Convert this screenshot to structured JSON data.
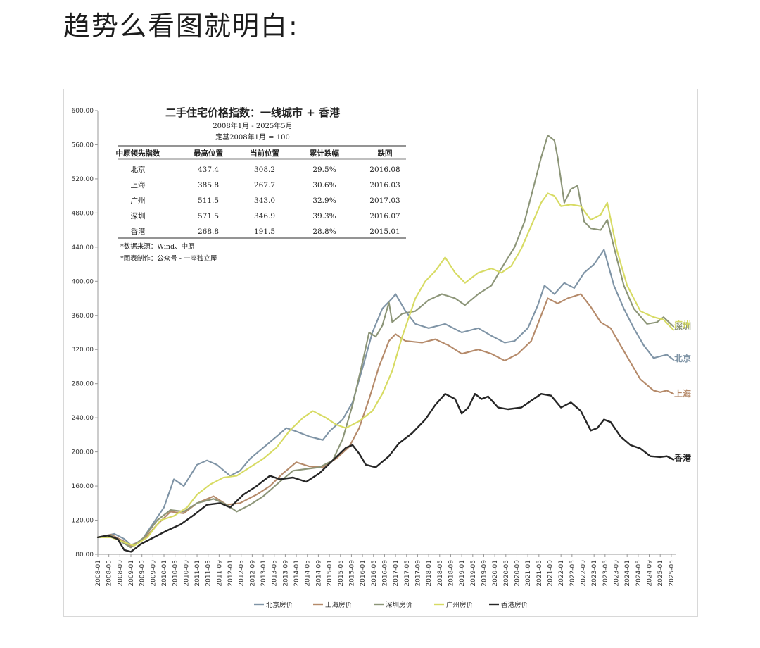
{
  "headline": "趋势么看图就明白:",
  "chart_data": {
    "type": "line",
    "title": "二手住宅价格指数：一线城市 + 香港",
    "subtitle": "2008年1月 - 2025年5月",
    "base_note": "定基2008年1月 = 100",
    "ylim": [
      80,
      600
    ],
    "yticks": [
      "80.00",
      "120.00",
      "160.00",
      "200.00",
      "240.00",
      "280.00",
      "320.00",
      "360.00",
      "400.00",
      "440.00",
      "480.00",
      "520.00",
      "560.00",
      "600.00"
    ],
    "xticks": [
      "2008-01",
      "2008-05",
      "2008-09",
      "2009-01",
      "2009-05",
      "2009-09",
      "2010-01",
      "2010-05",
      "2010-09",
      "2011-01",
      "2011-05",
      "2011-09",
      "2012-01",
      "2012-05",
      "2012-09",
      "2013-01",
      "2013-05",
      "2013-09",
      "2014-01",
      "2014-05",
      "2014-09",
      "2015-01",
      "2015-05",
      "2015-09",
      "2016-01",
      "2016-05",
      "2016-09",
      "2017-01",
      "2017-05",
      "2017-09",
      "2018-01",
      "2018-05",
      "2018-09",
      "2019-01",
      "2019-05",
      "2019-09",
      "2020-01",
      "2020-05",
      "2020-09",
      "2021-01",
      "2021-05",
      "2021-09",
      "2022-01",
      "2022-05",
      "2022-09",
      "2023-01",
      "2023-05",
      "2023-09",
      "2024-01",
      "2024-05",
      "2024-09",
      "2025-01",
      "2025-05"
    ],
    "table": {
      "headers": [
        "中原领先指数",
        "最高位置",
        "当前位置",
        "累计跌幅",
        "跌回"
      ],
      "rows": [
        [
          "北京",
          "437.4",
          "308.2",
          "29.5%",
          "2016.08"
        ],
        [
          "上海",
          "385.8",
          "267.7",
          "30.6%",
          "2016.03"
        ],
        [
          "广州",
          "511.5",
          "343.0",
          "32.9%",
          "2017.03"
        ],
        [
          "深圳",
          "571.5",
          "346.9",
          "39.3%",
          "2016.07"
        ],
        [
          "香港",
          "268.8",
          "191.5",
          "28.8%",
          "2015.01"
        ]
      ]
    },
    "notes": [
      "*数据来源：Wind、中原",
      "*图表制作：公众号 - 一座独立屋"
    ],
    "series": [
      {
        "name": "北京房价",
        "label": "北京",
        "color": "#7f94a6",
        "points": [
          [
            2008.0,
            100
          ],
          [
            2008.5,
            104
          ],
          [
            2008.8,
            98
          ],
          [
            2009.0,
            91
          ],
          [
            2009.3,
            95
          ],
          [
            2009.6,
            112
          ],
          [
            2010.0,
            135
          ],
          [
            2010.3,
            168
          ],
          [
            2010.6,
            160
          ],
          [
            2011.0,
            185
          ],
          [
            2011.3,
            190
          ],
          [
            2011.6,
            185
          ],
          [
            2012.0,
            172
          ],
          [
            2012.3,
            178
          ],
          [
            2012.6,
            192
          ],
          [
            2013.0,
            205
          ],
          [
            2013.4,
            218
          ],
          [
            2013.7,
            228
          ],
          [
            2014.0,
            224
          ],
          [
            2014.4,
            218
          ],
          [
            2014.8,
            214
          ],
          [
            2015.0,
            224
          ],
          [
            2015.4,
            238
          ],
          [
            2015.7,
            258
          ],
          [
            2016.0,
            298
          ],
          [
            2016.3,
            340
          ],
          [
            2016.6,
            368
          ],
          [
            2016.9,
            380
          ],
          [
            2017.0,
            385
          ],
          [
            2017.3,
            365
          ],
          [
            2017.6,
            350
          ],
          [
            2018.0,
            345
          ],
          [
            2018.5,
            350
          ],
          [
            2019.0,
            340
          ],
          [
            2019.5,
            345
          ],
          [
            2019.9,
            336
          ],
          [
            2020.3,
            328
          ],
          [
            2020.6,
            330
          ],
          [
            2021.0,
            345
          ],
          [
            2021.3,
            372
          ],
          [
            2021.5,
            395
          ],
          [
            2021.8,
            385
          ],
          [
            2022.1,
            398
          ],
          [
            2022.4,
            392
          ],
          [
            2022.7,
            410
          ],
          [
            2023.0,
            420
          ],
          [
            2023.3,
            437
          ],
          [
            2023.6,
            395
          ],
          [
            2023.9,
            368
          ],
          [
            2024.2,
            345
          ],
          [
            2024.5,
            325
          ],
          [
            2024.8,
            310
          ],
          [
            2025.0,
            312
          ],
          [
            2025.2,
            314
          ],
          [
            2025.4,
            308
          ]
        ]
      },
      {
        "name": "上海房价",
        "label": "上海",
        "color": "#b58a6a",
        "points": [
          [
            2008.0,
            100
          ],
          [
            2008.4,
            103
          ],
          [
            2008.8,
            95
          ],
          [
            2009.0,
            90
          ],
          [
            2009.4,
            98
          ],
          [
            2009.8,
            115
          ],
          [
            2010.2,
            130
          ],
          [
            2010.6,
            128
          ],
          [
            2011.0,
            140
          ],
          [
            2011.5,
            148
          ],
          [
            2011.9,
            138
          ],
          [
            2012.3,
            140
          ],
          [
            2012.8,
            150
          ],
          [
            2013.2,
            160
          ],
          [
            2013.6,
            175
          ],
          [
            2014.0,
            188
          ],
          [
            2014.4,
            183
          ],
          [
            2014.8,
            182
          ],
          [
            2015.2,
            192
          ],
          [
            2015.6,
            206
          ],
          [
            2015.9,
            228
          ],
          [
            2016.2,
            262
          ],
          [
            2016.5,
            300
          ],
          [
            2016.8,
            330
          ],
          [
            2017.0,
            338
          ],
          [
            2017.3,
            330
          ],
          [
            2017.8,
            328
          ],
          [
            2018.2,
            332
          ],
          [
            2018.6,
            325
          ],
          [
            2019.0,
            315
          ],
          [
            2019.5,
            320
          ],
          [
            2019.9,
            315
          ],
          [
            2020.3,
            307
          ],
          [
            2020.7,
            315
          ],
          [
            2021.1,
            330
          ],
          [
            2021.4,
            360
          ],
          [
            2021.6,
            380
          ],
          [
            2021.9,
            374
          ],
          [
            2022.2,
            380
          ],
          [
            2022.6,
            385
          ],
          [
            2022.9,
            370
          ],
          [
            2023.2,
            352
          ],
          [
            2023.5,
            345
          ],
          [
            2023.8,
            325
          ],
          [
            2024.1,
            305
          ],
          [
            2024.4,
            285
          ],
          [
            2024.8,
            272
          ],
          [
            2025.0,
            270
          ],
          [
            2025.2,
            272
          ],
          [
            2025.4,
            268
          ]
        ]
      },
      {
        "name": "深圳房价",
        "label": "深圳",
        "color": "#8c9578",
        "points": [
          [
            2008.0,
            100
          ],
          [
            2008.4,
            102
          ],
          [
            2008.7,
            95
          ],
          [
            2009.0,
            88
          ],
          [
            2009.4,
            100
          ],
          [
            2009.8,
            120
          ],
          [
            2010.2,
            132
          ],
          [
            2010.6,
            130
          ],
          [
            2011.0,
            140
          ],
          [
            2011.5,
            145
          ],
          [
            2011.9,
            138
          ],
          [
            2012.2,
            130
          ],
          [
            2012.6,
            138
          ],
          [
            2013.0,
            148
          ],
          [
            2013.5,
            165
          ],
          [
            2013.9,
            178
          ],
          [
            2014.3,
            180
          ],
          [
            2014.7,
            182
          ],
          [
            2015.1,
            190
          ],
          [
            2015.4,
            215
          ],
          [
            2015.7,
            255
          ],
          [
            2016.0,
            305
          ],
          [
            2016.2,
            340
          ],
          [
            2016.4,
            335
          ],
          [
            2016.6,
            348
          ],
          [
            2016.8,
            375
          ],
          [
            2016.9,
            352
          ],
          [
            2017.2,
            362
          ],
          [
            2017.6,
            365
          ],
          [
            2018.0,
            378
          ],
          [
            2018.4,
            385
          ],
          [
            2018.8,
            380
          ],
          [
            2019.1,
            372
          ],
          [
            2019.5,
            385
          ],
          [
            2019.9,
            395
          ],
          [
            2020.2,
            415
          ],
          [
            2020.6,
            440
          ],
          [
            2020.9,
            470
          ],
          [
            2021.2,
            515
          ],
          [
            2021.4,
            545
          ],
          [
            2021.6,
            571
          ],
          [
            2021.8,
            565
          ],
          [
            2021.9,
            545
          ],
          [
            2022.1,
            492
          ],
          [
            2022.3,
            508
          ],
          [
            2022.5,
            512
          ],
          [
            2022.7,
            470
          ],
          [
            2022.9,
            462
          ],
          [
            2023.2,
            460
          ],
          [
            2023.4,
            472
          ],
          [
            2023.6,
            440
          ],
          [
            2023.9,
            395
          ],
          [
            2024.2,
            368
          ],
          [
            2024.6,
            350
          ],
          [
            2024.9,
            352
          ],
          [
            2025.1,
            358
          ],
          [
            2025.4,
            347
          ]
        ]
      },
      {
        "name": "广州房价",
        "label": "广州",
        "color": "#d7db63",
        "points": [
          [
            2008.0,
            100
          ],
          [
            2008.4,
            100
          ],
          [
            2008.8,
            94
          ],
          [
            2009.1,
            90
          ],
          [
            2009.5,
            100
          ],
          [
            2009.9,
            120
          ],
          [
            2010.3,
            125
          ],
          [
            2010.7,
            135
          ],
          [
            2011.0,
            150
          ],
          [
            2011.4,
            162
          ],
          [
            2011.8,
            170
          ],
          [
            2012.2,
            172
          ],
          [
            2012.6,
            182
          ],
          [
            2013.0,
            192
          ],
          [
            2013.4,
            205
          ],
          [
            2013.8,
            225
          ],
          [
            2014.2,
            240
          ],
          [
            2014.5,
            248
          ],
          [
            2014.9,
            240
          ],
          [
            2015.2,
            232
          ],
          [
            2015.5,
            228
          ],
          [
            2015.9,
            236
          ],
          [
            2016.3,
            248
          ],
          [
            2016.6,
            268
          ],
          [
            2016.9,
            295
          ],
          [
            2017.2,
            335
          ],
          [
            2017.6,
            380
          ],
          [
            2017.9,
            400
          ],
          [
            2018.2,
            412
          ],
          [
            2018.5,
            428
          ],
          [
            2018.8,
            410
          ],
          [
            2019.1,
            398
          ],
          [
            2019.5,
            410
          ],
          [
            2019.9,
            415
          ],
          [
            2020.2,
            410
          ],
          [
            2020.5,
            418
          ],
          [
            2020.8,
            438
          ],
          [
            2021.1,
            465
          ],
          [
            2021.4,
            492
          ],
          [
            2021.6,
            503
          ],
          [
            2021.8,
            500
          ],
          [
            2022.0,
            488
          ],
          [
            2022.3,
            490
          ],
          [
            2022.6,
            488
          ],
          [
            2022.9,
            472
          ],
          [
            2023.2,
            478
          ],
          [
            2023.4,
            492
          ],
          [
            2023.7,
            435
          ],
          [
            2024.0,
            395
          ],
          [
            2024.4,
            365
          ],
          [
            2024.8,
            358
          ],
          [
            2025.1,
            355
          ],
          [
            2025.4,
            343
          ]
        ]
      },
      {
        "name": "香港房价",
        "label": "香港",
        "color": "#262626",
        "points": [
          [
            2008.0,
            100
          ],
          [
            2008.3,
            102
          ],
          [
            2008.6,
            98
          ],
          [
            2008.8,
            85
          ],
          [
            2009.0,
            83
          ],
          [
            2009.3,
            92
          ],
          [
            2009.7,
            100
          ],
          [
            2010.1,
            108
          ],
          [
            2010.5,
            115
          ],
          [
            2010.9,
            126
          ],
          [
            2011.3,
            138
          ],
          [
            2011.7,
            140
          ],
          [
            2012.0,
            135
          ],
          [
            2012.4,
            150
          ],
          [
            2012.8,
            160
          ],
          [
            2013.2,
            172
          ],
          [
            2013.5,
            168
          ],
          [
            2013.9,
            170
          ],
          [
            2014.3,
            165
          ],
          [
            2014.7,
            175
          ],
          [
            2015.1,
            190
          ],
          [
            2015.5,
            205
          ],
          [
            2015.7,
            208
          ],
          [
            2015.9,
            198
          ],
          [
            2016.1,
            185
          ],
          [
            2016.4,
            182
          ],
          [
            2016.8,
            195
          ],
          [
            2017.1,
            210
          ],
          [
            2017.5,
            222
          ],
          [
            2017.9,
            238
          ],
          [
            2018.2,
            255
          ],
          [
            2018.5,
            268
          ],
          [
            2018.8,
            262
          ],
          [
            2019.0,
            245
          ],
          [
            2019.2,
            252
          ],
          [
            2019.4,
            268
          ],
          [
            2019.6,
            262
          ],
          [
            2019.8,
            265
          ],
          [
            2020.1,
            252
          ],
          [
            2020.4,
            250
          ],
          [
            2020.8,
            252
          ],
          [
            2021.1,
            260
          ],
          [
            2021.4,
            268
          ],
          [
            2021.7,
            266
          ],
          [
            2022.0,
            252
          ],
          [
            2022.3,
            258
          ],
          [
            2022.6,
            248
          ],
          [
            2022.9,
            225
          ],
          [
            2023.1,
            228
          ],
          [
            2023.3,
            238
          ],
          [
            2023.5,
            235
          ],
          [
            2023.8,
            218
          ],
          [
            2024.1,
            208
          ],
          [
            2024.4,
            204
          ],
          [
            2024.7,
            195
          ],
          [
            2025.0,
            194
          ],
          [
            2025.2,
            195
          ],
          [
            2025.4,
            191
          ]
        ]
      }
    ]
  }
}
